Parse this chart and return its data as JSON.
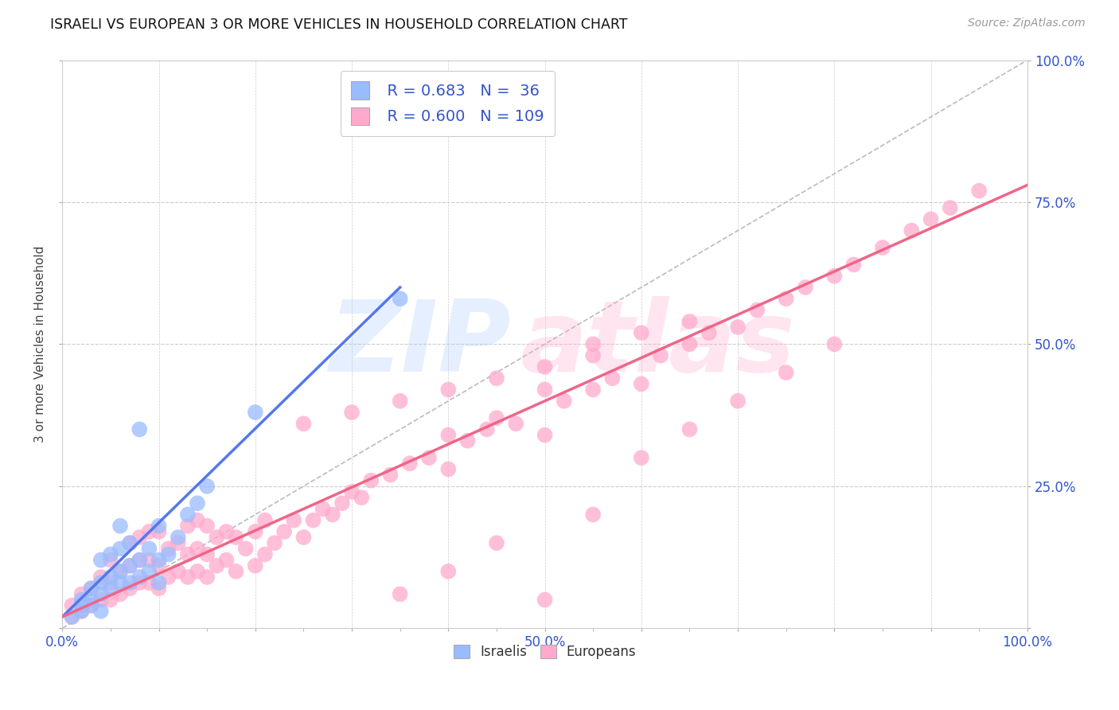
{
  "title": "ISRAELI VS EUROPEAN 3 OR MORE VEHICLES IN HOUSEHOLD CORRELATION CHART",
  "source": "Source: ZipAtlas.com",
  "ylabel": "3 or more Vehicles in Household",
  "background_color": "#ffffff",
  "grid_color": "#cccccc",
  "israeli_color": "#99bbff",
  "european_color": "#ffaacc",
  "israeli_line_color": "#5577ee",
  "european_line_color": "#ee6688",
  "diagonal_color": "#bbbbbb",
  "label_color": "#3355cc",
  "legend_israeli_label": "R = 0.683   N =  36",
  "legend_european_label": "R = 0.600   N = 109",
  "legend_israelis": "Israelis",
  "legend_europeans": "Europeans",
  "xlim": [
    0.0,
    1.0
  ],
  "ylim": [
    0.0,
    1.0
  ],
  "right_yticks": [
    0.0,
    0.25,
    0.5,
    0.75,
    1.0
  ],
  "right_yticklabels": [
    "",
    "25.0%",
    "50.0%",
    "75.0%",
    "100.0%"
  ],
  "xticklabels_pos": [
    0.0,
    0.5,
    1.0
  ],
  "xticklabels": [
    "0.0%",
    "50.0%",
    "100.0%"
  ],
  "israeli_x": [
    0.01,
    0.02,
    0.02,
    0.03,
    0.03,
    0.04,
    0.04,
    0.04,
    0.05,
    0.05,
    0.05,
    0.06,
    0.06,
    0.06,
    0.07,
    0.07,
    0.07,
    0.08,
    0.08,
    0.09,
    0.09,
    0.1,
    0.1,
    0.1,
    0.11,
    0.12,
    0.13,
    0.14,
    0.15,
    0.03,
    0.04,
    0.2,
    0.35,
    0.02,
    0.06,
    0.08
  ],
  "israeli_y": [
    0.02,
    0.03,
    0.04,
    0.05,
    0.07,
    0.06,
    0.08,
    0.12,
    0.07,
    0.09,
    0.13,
    0.08,
    0.1,
    0.14,
    0.08,
    0.11,
    0.15,
    0.09,
    0.12,
    0.1,
    0.14,
    0.08,
    0.12,
    0.18,
    0.13,
    0.16,
    0.2,
    0.22,
    0.25,
    0.04,
    0.03,
    0.38,
    0.58,
    0.05,
    0.18,
    0.35
  ],
  "european_x": [
    0.01,
    0.01,
    0.02,
    0.02,
    0.03,
    0.03,
    0.04,
    0.04,
    0.05,
    0.05,
    0.05,
    0.06,
    0.06,
    0.07,
    0.07,
    0.07,
    0.08,
    0.08,
    0.08,
    0.09,
    0.09,
    0.09,
    0.1,
    0.1,
    0.1,
    0.11,
    0.11,
    0.12,
    0.12,
    0.13,
    0.13,
    0.13,
    0.14,
    0.14,
    0.14,
    0.15,
    0.15,
    0.15,
    0.16,
    0.16,
    0.17,
    0.17,
    0.18,
    0.18,
    0.19,
    0.2,
    0.2,
    0.21,
    0.21,
    0.22,
    0.23,
    0.24,
    0.25,
    0.26,
    0.27,
    0.28,
    0.29,
    0.3,
    0.31,
    0.32,
    0.34,
    0.36,
    0.38,
    0.4,
    0.4,
    0.42,
    0.44,
    0.45,
    0.47,
    0.5,
    0.5,
    0.52,
    0.55,
    0.55,
    0.57,
    0.6,
    0.62,
    0.65,
    0.67,
    0.7,
    0.72,
    0.75,
    0.77,
    0.8,
    0.82,
    0.85,
    0.88,
    0.9,
    0.92,
    0.95,
    0.35,
    0.4,
    0.45,
    0.5,
    0.55,
    0.6,
    0.65,
    0.7,
    0.75,
    0.8,
    0.25,
    0.3,
    0.35,
    0.4,
    0.45,
    0.5,
    0.55,
    0.6,
    0.65
  ],
  "european_y": [
    0.02,
    0.04,
    0.03,
    0.06,
    0.04,
    0.07,
    0.05,
    0.09,
    0.05,
    0.08,
    0.12,
    0.06,
    0.1,
    0.07,
    0.11,
    0.15,
    0.08,
    0.12,
    0.16,
    0.08,
    0.12,
    0.17,
    0.07,
    0.11,
    0.17,
    0.09,
    0.14,
    0.1,
    0.15,
    0.09,
    0.13,
    0.18,
    0.1,
    0.14,
    0.19,
    0.09,
    0.13,
    0.18,
    0.11,
    0.16,
    0.12,
    0.17,
    0.1,
    0.16,
    0.14,
    0.11,
    0.17,
    0.13,
    0.19,
    0.15,
    0.17,
    0.19,
    0.16,
    0.19,
    0.21,
    0.2,
    0.22,
    0.24,
    0.23,
    0.26,
    0.27,
    0.29,
    0.3,
    0.28,
    0.34,
    0.33,
    0.35,
    0.37,
    0.36,
    0.34,
    0.42,
    0.4,
    0.42,
    0.48,
    0.44,
    0.43,
    0.48,
    0.5,
    0.52,
    0.53,
    0.56,
    0.58,
    0.6,
    0.62,
    0.64,
    0.67,
    0.7,
    0.72,
    0.74,
    0.77,
    0.06,
    0.1,
    0.15,
    0.05,
    0.2,
    0.3,
    0.35,
    0.4,
    0.45,
    0.5,
    0.36,
    0.38,
    0.4,
    0.42,
    0.44,
    0.46,
    0.5,
    0.52,
    0.54
  ],
  "isr_line_x": [
    0.0,
    0.35
  ],
  "isr_line_y": [
    0.02,
    0.6
  ],
  "eur_line_x": [
    0.0,
    1.0
  ],
  "eur_line_y": [
    0.02,
    0.78
  ]
}
